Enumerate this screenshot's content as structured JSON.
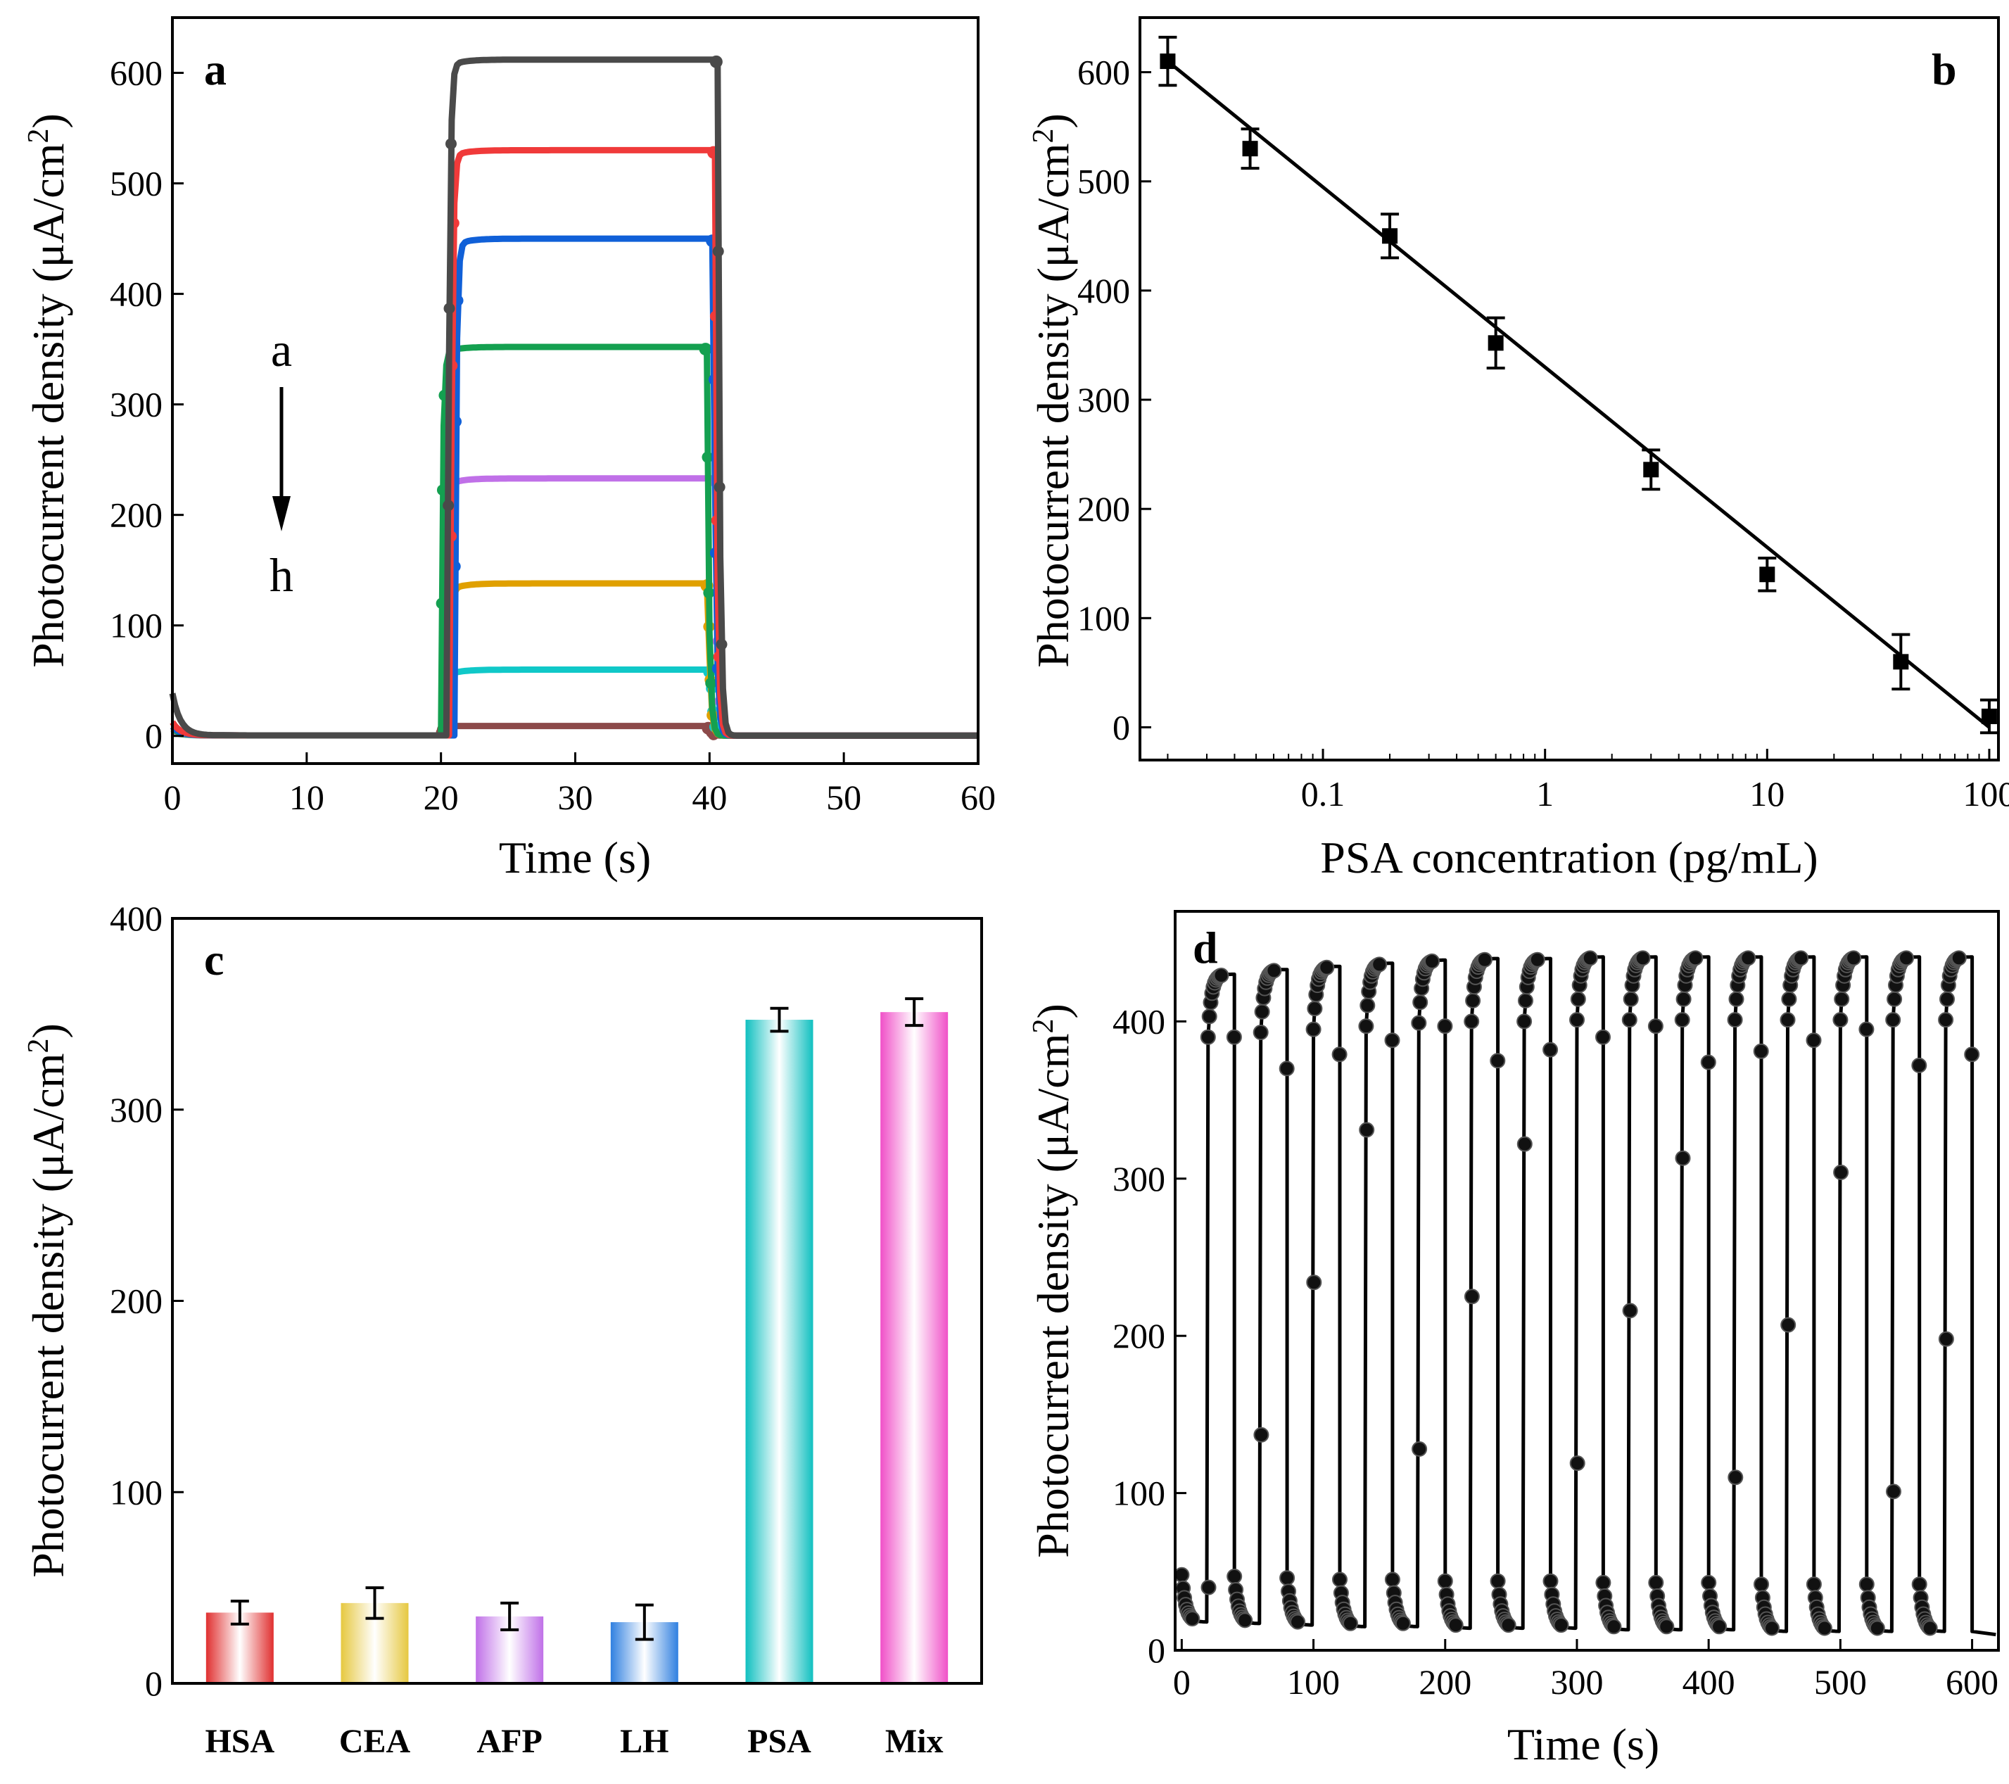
{
  "colors": {
    "a": "#4a4a4a",
    "b": "#f03a3a",
    "c": "#1060d8",
    "d": "#14a050",
    "e": "#c070e8",
    "f": "#e0a000",
    "g": "#10c8c8",
    "h": "#8c4a4a"
  },
  "chart_data": [
    {
      "panel": "a",
      "type": "line",
      "xlabel": "Time (s)",
      "ylabel": "Photocurrent density (μA/cm²)",
      "ylabel_main": "Photocurrent density (μA/cm",
      "ylabel_sup": "2",
      "ylabel_end": ")",
      "xlim": [
        0,
        60
      ],
      "ylim": [
        -25,
        650
      ],
      "xticks": [
        "0",
        "10",
        "20",
        "30",
        "40",
        "50",
        "60"
      ],
      "yticks": [
        "0",
        "100",
        "200",
        "300",
        "400",
        "500",
        "600"
      ],
      "arrow_top": "a",
      "arrow_bottom": "h",
      "series": [
        {
          "name": "a",
          "on_value": 612,
          "t_on": 20.5,
          "t_off": 40.6,
          "init": 38
        },
        {
          "name": "b",
          "on_value": 530,
          "t_on": 20.7,
          "t_off": 40.4,
          "init": 12
        },
        {
          "name": "c",
          "on_value": 450,
          "t_on": 21.0,
          "t_off": 40.3,
          "init": 8
        },
        {
          "name": "d",
          "on_value": 352,
          "t_on": 20.0,
          "t_off": 39.8,
          "init": 6
        },
        {
          "name": "e",
          "on_value": 233,
          "t_on": 20.4,
          "t_off": 40.5,
          "init": 5
        },
        {
          "name": "f",
          "on_value": 138,
          "t_on": 20.6,
          "t_off": 39.9,
          "init": 4
        },
        {
          "name": "g",
          "on_value": 60,
          "t_on": 20.2,
          "t_off": 40.1,
          "init": 3
        },
        {
          "name": "h",
          "on_value": 9,
          "t_on": 20.0,
          "t_off": 40.0,
          "init": 0
        }
      ]
    },
    {
      "panel": "b",
      "type": "scatter",
      "xscale": "log",
      "xlabel": "PSA concentration (pg/mL)",
      "ylabel_main": "Photocurrent density (μA/cm",
      "ylabel_sup": "2",
      "ylabel_end": ")",
      "xlim": [
        0.015,
        110
      ],
      "ylim": [
        -30,
        650
      ],
      "xticks": [
        {
          "value": 0.1,
          "label": "0.1"
        },
        {
          "value": 1,
          "label": "1"
        },
        {
          "value": 10,
          "label": "10"
        },
        {
          "value": 100,
          "label": "100"
        }
      ],
      "yticks": [
        "0",
        "100",
        "200",
        "300",
        "400",
        "500",
        "600"
      ],
      "x": [
        0.02,
        0.047,
        0.2,
        0.6,
        3,
        10,
        40,
        100
      ],
      "y": [
        610,
        530,
        450,
        352,
        236,
        140,
        60,
        10
      ],
      "yerr": [
        22,
        18,
        20,
        23,
        18,
        15,
        25,
        15
      ],
      "fit_line": {
        "x": [
          0.02,
          100
        ],
        "y": [
          610,
          0
        ]
      }
    },
    {
      "panel": "c",
      "type": "bar",
      "ylabel_main": "Photocurrent density (μA/cm",
      "ylabel_sup": "2",
      "ylabel_end": ")",
      "ylim": [
        0,
        400
      ],
      "yticks": [
        "0",
        "100",
        "200",
        "300",
        "400"
      ],
      "categories": [
        "HSA",
        "CEA",
        "AFP",
        "LH",
        "PSA",
        "Mix"
      ],
      "values": [
        37,
        42,
        35,
        32,
        347,
        351
      ],
      "errors": [
        6,
        8,
        7,
        9,
        6,
        7
      ],
      "bar_colors": [
        "#e03030",
        "#e6c840",
        "#c070e8",
        "#3080e0",
        "#10c0c0",
        "#f050c8"
      ]
    },
    {
      "panel": "d",
      "type": "line",
      "xlabel": "Time (s)",
      "ylabel_main": "Photocurrent density (μA/cm",
      "ylabel_sup": "2",
      "ylabel_end": ")",
      "xlim": [
        -5,
        620
      ],
      "ylim": [
        0,
        470
      ],
      "xticks": [
        "0",
        "100",
        "200",
        "300",
        "400",
        "500",
        "600"
      ],
      "yticks": [
        "0",
        "100",
        "200",
        "300",
        "400"
      ],
      "cycle_period_s": 40,
      "on_duration_s": 20,
      "cycles": 15,
      "on_values": [
        430,
        433,
        435,
        437,
        439,
        440,
        440,
        441,
        441,
        441,
        441,
        441,
        441,
        441,
        441
      ],
      "off_values": [
        18,
        17,
        16,
        15,
        15,
        14,
        14,
        14,
        13,
        13,
        13,
        12,
        12,
        12,
        12
      ]
    }
  ]
}
